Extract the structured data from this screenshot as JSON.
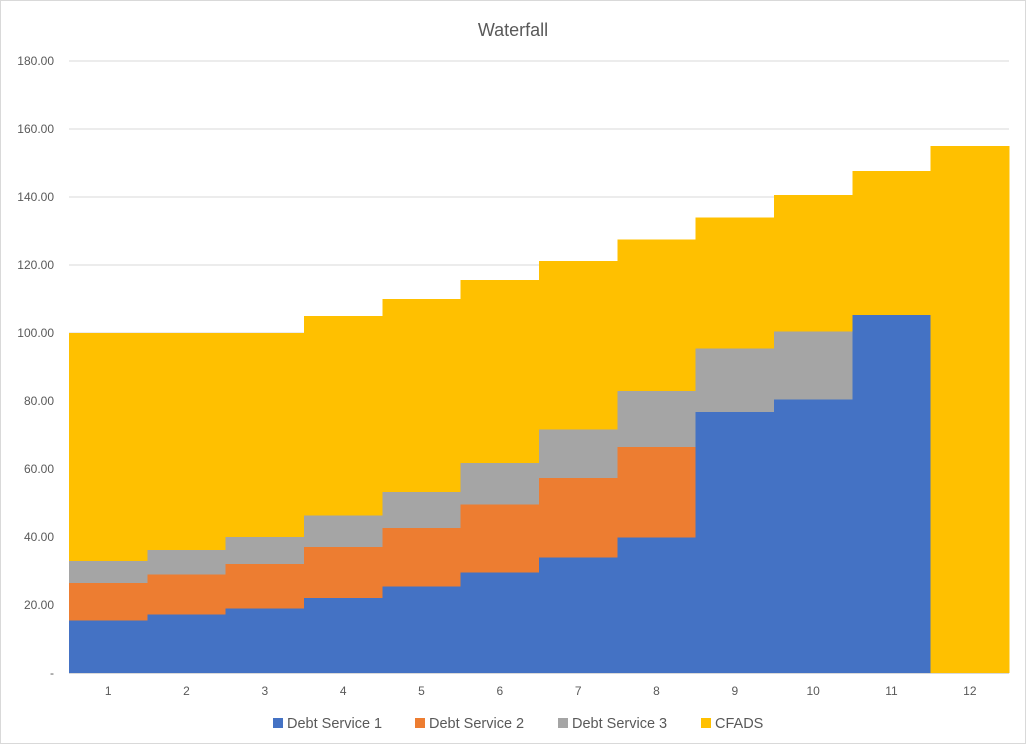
{
  "chart_data": {
    "type": "area",
    "stacked": true,
    "step": true,
    "title": "Waterfall",
    "xlabel": "",
    "ylabel": "",
    "categories": [
      "1",
      "2",
      "3",
      "4",
      "5",
      "6",
      "7",
      "8",
      "9",
      "10",
      "11",
      "12"
    ],
    "ylim": [
      0,
      180
    ],
    "y_ticks": [
      {
        "value": 0,
        "label": "-"
      },
      {
        "value": 20,
        "label": "20.00"
      },
      {
        "value": 40,
        "label": "40.00"
      },
      {
        "value": 60,
        "label": "60.00"
      },
      {
        "value": 80,
        "label": "80.00"
      },
      {
        "value": 100,
        "label": "100.00"
      },
      {
        "value": 120,
        "label": "120.00"
      },
      {
        "value": 140,
        "label": "140.00"
      },
      {
        "value": 160,
        "label": "160.00"
      },
      {
        "value": 180,
        "label": "180.00"
      }
    ],
    "grid": true,
    "legend_position": "bottom",
    "series": [
      {
        "name": "Debt Service 1",
        "color": "#4472C4",
        "values": [
          15.5,
          17.2,
          19.0,
          22.0,
          25.5,
          29.5,
          34.0,
          39.8,
          76.8,
          80.5,
          105.3,
          0
        ]
      },
      {
        "name": "Debt Service 2",
        "color": "#ED7D31",
        "values": [
          11.0,
          11.8,
          13.0,
          15.0,
          17.2,
          20.0,
          23.3,
          26.7,
          0,
          0,
          0,
          0
        ]
      },
      {
        "name": "Debt Service 3",
        "color": "#A5A5A5",
        "values": [
          6.5,
          7.2,
          8.0,
          9.3,
          10.5,
          12.3,
          14.3,
          16.4,
          18.7,
          20.0,
          0,
          0
        ]
      },
      {
        "name": "CFADS",
        "color": "#FFC000",
        "values": [
          67.0,
          63.8,
          60.0,
          58.7,
          56.8,
          53.8,
          49.6,
          44.6,
          38.4,
          40.1,
          42.4,
          155.0
        ]
      }
    ]
  }
}
